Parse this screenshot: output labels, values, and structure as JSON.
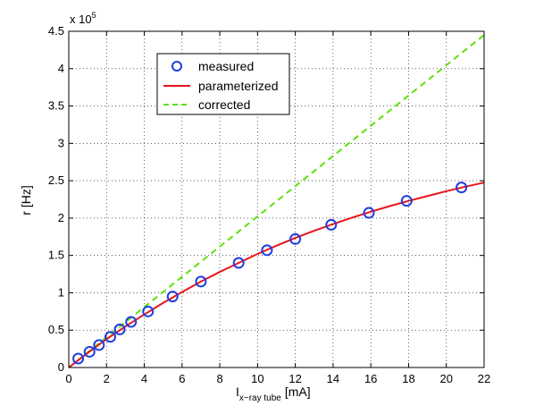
{
  "chart_data": {
    "type": "line",
    "xlabel": {
      "main": "I",
      "subscript": "x−ray tube",
      "unit": "[mA]"
    },
    "ylabel": "r [Hz]",
    "y_multiplier": {
      "base": "x 10",
      "exponent": "5"
    },
    "xlim": [
      0,
      22
    ],
    "ylim": [
      0,
      450000
    ],
    "x_ticks": [
      0,
      2,
      4,
      6,
      8,
      10,
      12,
      14,
      16,
      18,
      20,
      22
    ],
    "x_tick_labels": [
      "0",
      "2",
      "4",
      "6",
      "8",
      "10",
      "12",
      "14",
      "16",
      "18",
      "20",
      "22"
    ],
    "y_ticks": [
      0,
      50000,
      100000,
      150000,
      200000,
      250000,
      300000,
      350000,
      400000,
      450000
    ],
    "y_tick_labels": [
      "0",
      "0.5",
      "1",
      "1.5",
      "2",
      "2.5",
      "3",
      "3.5",
      "4",
      "4.5"
    ],
    "grid": true,
    "legend_position": "top-left",
    "series": [
      {
        "name": "measured",
        "style": "markers",
        "marker": "circle",
        "color": "#1f3fe0",
        "x": [
          0.5,
          1.1,
          1.6,
          2.2,
          2.7,
          3.3,
          4.2,
          5.5,
          7.0,
          9.0,
          10.5,
          12.0,
          13.9,
          15.9,
          17.9,
          20.8
        ],
        "y": [
          12000,
          21000,
          30000,
          41000,
          51000,
          61000,
          75000,
          95000,
          115000,
          140000,
          157000,
          172000,
          191000,
          207000,
          223000,
          241000
        ]
      },
      {
        "name": "parameterized",
        "style": "solid",
        "color": "#e8141c",
        "x": [
          0,
          1,
          2,
          3,
          4,
          5,
          6,
          7,
          8,
          9,
          10,
          11,
          12,
          13,
          14,
          15,
          16,
          17,
          18,
          19,
          20,
          21,
          22
        ],
        "y": [
          0,
          19500,
          38000,
          55000,
          71000,
          86500,
          101000,
          115000,
          128000,
          140000,
          152000,
          163000,
          173500,
          183000,
          192000,
          200500,
          208500,
          216000,
          223000,
          229500,
          236000,
          242000,
          247500
        ]
      },
      {
        "name": "corrected",
        "style": "dashed",
        "color": "#5ee00a",
        "x": [
          0,
          22
        ],
        "y": [
          0,
          445000
        ]
      }
    ]
  }
}
